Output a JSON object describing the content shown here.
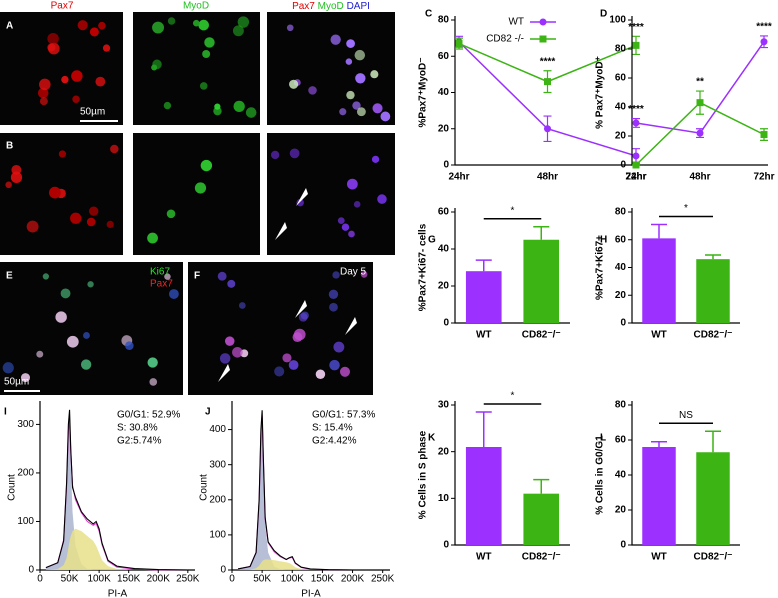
{
  "images": {
    "header_pax7": "Pax7",
    "header_myod": "MyoD",
    "header_merge": [
      "Pax7",
      "MyoD",
      "DAPI"
    ],
    "letters": [
      "A",
      "B",
      "E",
      "F"
    ],
    "scale_bar_a": "50µm",
    "scale_bar_e": "50µm",
    "e_labels": [
      "Ki67",
      "Pax7"
    ],
    "f_label": "Day 5"
  },
  "chart_data": [
    {
      "type": "line",
      "label": "C",
      "ylabel": "%Pax7⁺MyoD⁻",
      "categories": [
        "24hr",
        "48hr",
        "72hr"
      ],
      "ylim": [
        0,
        80
      ],
      "yticks": [
        0,
        20,
        40,
        60,
        80
      ],
      "legend": true,
      "series": [
        {
          "name": "WT",
          "color": "#9b30ff",
          "marker": "circle",
          "values": [
            68,
            20,
            5
          ],
          "errors": [
            3,
            7,
            4
          ]
        },
        {
          "name": "CD82 -/-",
          "color": "#3cb414",
          "marker": "square",
          "values": [
            67,
            46,
            66
          ],
          "errors": [
            3,
            6,
            5
          ]
        }
      ],
      "annotations": [
        null,
        "****",
        "****"
      ]
    },
    {
      "type": "line",
      "label": "D",
      "ylabel": "% Pax7⁺MyoD⁺",
      "categories": [
        "24hr",
        "48hr",
        "72hr"
      ],
      "ylim": [
        0,
        100
      ],
      "yticks": [
        0,
        20,
        40,
        60,
        80,
        100
      ],
      "legend": false,
      "series": [
        {
          "name": "WT",
          "color": "#9b30ff",
          "marker": "circle",
          "values": [
            29,
            22,
            85
          ],
          "errors": [
            3,
            3,
            4
          ]
        },
        {
          "name": "CD82 -/-",
          "color": "#3cb414",
          "marker": "square",
          "values": [
            0,
            43,
            21
          ],
          "errors": [
            0,
            8,
            4
          ]
        }
      ],
      "annotations": [
        "****",
        "**",
        "****"
      ]
    },
    {
      "type": "bar",
      "label": "G",
      "ylabel": "%Pax7+Ki67- cells",
      "categories": [
        "WT",
        "CD82⁻/⁻"
      ],
      "colors": [
        "#9b30ff",
        "#3cb414"
      ],
      "values": [
        28,
        45
      ],
      "errors": [
        6,
        7
      ],
      "ylim": [
        0,
        60
      ],
      "yticks": [
        0,
        20,
        40,
        60
      ],
      "annotation": "*"
    },
    {
      "type": "bar",
      "label": "H",
      "ylabel": "%Pax7+Ki67+",
      "categories": [
        "WT",
        "CD82⁻/⁻"
      ],
      "colors": [
        "#9b30ff",
        "#3cb414"
      ],
      "values": [
        61,
        46
      ],
      "errors": [
        10,
        3
      ],
      "ylim": [
        0,
        80
      ],
      "yticks": [
        0,
        20,
        40,
        60,
        80
      ],
      "annotation": "*"
    },
    {
      "type": "bar",
      "label": "K",
      "ylabel": "% Cells in S phase",
      "categories": [
        "WT",
        "CD82⁻/⁻"
      ],
      "colors": [
        "#9b30ff",
        "#3cb414"
      ],
      "values": [
        21,
        11
      ],
      "errors": [
        7.5,
        3
      ],
      "ylim": [
        0,
        30
      ],
      "yticks": [
        0,
        10,
        20,
        30
      ],
      "annotation": "*"
    },
    {
      "type": "bar",
      "label": "L",
      "ylabel": "% Cells in G0/G1",
      "categories": [
        "WT",
        "CD82⁻/⁻"
      ],
      "colors": [
        "#9b30ff",
        "#3cb414"
      ],
      "values": [
        56,
        53
      ],
      "errors": [
        3,
        12
      ],
      "ylim": [
        0,
        80
      ],
      "yticks": [
        0,
        20,
        40,
        60,
        80
      ],
      "annotation": "NS"
    },
    {
      "type": "area",
      "label": "I",
      "ylabel": "Count",
      "xlabel": "PI-A",
      "xlim": [
        0,
        262144
      ],
      "ylim": [
        0,
        340
      ],
      "yticks": [
        0,
        100,
        200,
        300
      ],
      "xticks": [
        0,
        {
          "value": 50000,
          "label": "50K"
        },
        {
          "value": 100000,
          "label": "100K"
        },
        {
          "value": 150000,
          "label": "150K"
        },
        {
          "value": 200000,
          "label": "200K"
        },
        {
          "value": 250000,
          "label": "250K"
        }
      ],
      "stats": [
        "G0/G1: 52.9%",
        "S: 30.8%",
        "G2:5.74%"
      ],
      "x": [
        10000,
        30000,
        40000,
        45000,
        48000,
        50000,
        52000,
        55000,
        60000,
        70000,
        80000,
        90000,
        95000,
        100000,
        105000,
        115000,
        130000,
        160000,
        200000,
        250000
      ],
      "series": [
        {
          "color": "#a9b4cf",
          "fill": true,
          "values": [
            5,
            15,
            58,
            170,
            280,
            300,
            220,
            120,
            50,
            12,
            2,
            0,
            0,
            0,
            0,
            0,
            0,
            0,
            0,
            0
          ]
        },
        {
          "color": "#e8e08a",
          "fill": true,
          "values": [
            0,
            2,
            10,
            25,
            45,
            60,
            70,
            80,
            85,
            80,
            70,
            60,
            50,
            35,
            20,
            8,
            2,
            0,
            0,
            0
          ]
        },
        {
          "color": "#e040d0",
          "fill": false,
          "values": [
            5,
            15,
            62,
            175,
            285,
            310,
            245,
            175,
            145,
            118,
            100,
            92,
            96,
            80,
            52,
            18,
            6,
            2,
            0,
            0
          ]
        },
        {
          "color": "#000000",
          "fill": false,
          "values": [
            5,
            15,
            60,
            180,
            300,
            330,
            250,
            170,
            150,
            120,
            105,
            95,
            100,
            85,
            55,
            20,
            8,
            3,
            1,
            0
          ]
        }
      ]
    },
    {
      "type": "area",
      "label": "J",
      "ylabel": "Count",
      "xlabel": "PI-A",
      "xlim": [
        0,
        262144
      ],
      "ylim": [
        0,
        470
      ],
      "yticks": [
        0,
        100,
        200,
        300,
        400
      ],
      "xticks": [
        0,
        {
          "value": 50000,
          "label": "50K"
        },
        {
          "value": 100000,
          "label": "100K"
        },
        {
          "value": 150000,
          "label": "150K"
        },
        {
          "value": 200000,
          "label": "200K"
        },
        {
          "value": 250000,
          "label": "250K"
        }
      ],
      "stats": [
        "G0/G1: 57.3%",
        "S: 15.4%",
        "G2:4.42%"
      ],
      "x": [
        10000,
        30000,
        40000,
        45000,
        48000,
        50000,
        52000,
        55000,
        60000,
        70000,
        80000,
        90000,
        95000,
        100000,
        105000,
        115000,
        130000,
        160000,
        200000,
        250000
      ],
      "series": [
        {
          "color": "#a9b4cf",
          "fill": true,
          "values": [
            3,
            10,
            48,
            190,
            380,
            430,
            300,
            130,
            50,
            10,
            2,
            0,
            0,
            0,
            0,
            0,
            0,
            0,
            0,
            0
          ]
        },
        {
          "color": "#e8e08a",
          "fill": true,
          "values": [
            0,
            1,
            5,
            12,
            20,
            25,
            28,
            30,
            30,
            28,
            25,
            22,
            20,
            15,
            8,
            3,
            1,
            0,
            0,
            0
          ]
        },
        {
          "color": "#e040d0",
          "fill": false,
          "values": [
            3,
            10,
            50,
            195,
            390,
            440,
            310,
            145,
            78,
            52,
            38,
            30,
            34,
            36,
            19,
            7,
            2,
            1,
            0,
            0
          ]
        },
        {
          "color": "#000000",
          "fill": false,
          "values": [
            3,
            10,
            50,
            200,
            400,
            455,
            320,
            150,
            80,
            55,
            40,
            30,
            35,
            38,
            20,
            8,
            3,
            1,
            0,
            0
          ]
        }
      ]
    }
  ]
}
